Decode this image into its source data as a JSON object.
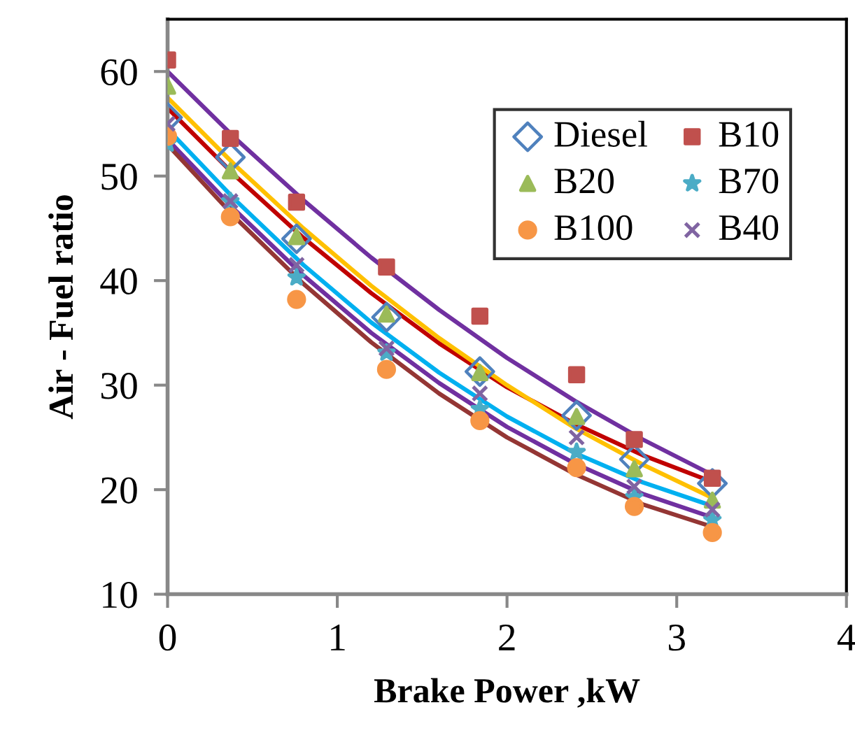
{
  "chart_data": {
    "type": "scatter",
    "xlabel": "Brake Power ,kW",
    "ylabel": "Air - Fuel ratio",
    "xlim": [
      0,
      4
    ],
    "xticks": [
      0,
      1,
      2,
      3,
      4
    ],
    "ylim": [
      10,
      65
    ],
    "yticks": [
      10,
      20,
      30,
      40,
      50,
      60
    ],
    "grid": false,
    "legend": "top right",
    "x": [
      0,
      0.37,
      0.76,
      1.29,
      1.84,
      2.41,
      2.75,
      3.21
    ],
    "series": [
      {
        "name": "Diesel",
        "color": "#4f81bd",
        "marker": "diamond",
        "values": [
          55.6,
          51.8,
          44.0,
          36.5,
          31.3,
          27.1,
          22.9,
          20.6
        ]
      },
      {
        "name": "B10",
        "color": "#c0504d",
        "marker": "square",
        "values": [
          61.1,
          53.6,
          47.5,
          41.3,
          36.6,
          31.0,
          24.8,
          21.1
        ]
      },
      {
        "name": "B20",
        "color": "#9bbb59",
        "marker": "triangle",
        "values": [
          58.6,
          50.5,
          44.2,
          36.8,
          31.2,
          27.0,
          22.0,
          19.0
        ]
      },
      {
        "name": "B70",
        "color": "#4bacc6",
        "marker": "star",
        "values": [
          53.1,
          47.6,
          40.3,
          33.1,
          27.7,
          23.6,
          19.3,
          17.1
        ]
      },
      {
        "name": "B100",
        "color": "#f79646",
        "marker": "circle",
        "values": [
          53.8,
          46.1,
          38.2,
          31.5,
          26.6,
          22.1,
          18.4,
          15.9
        ]
      },
      {
        "name": "B40",
        "color": "#8064a2",
        "marker": "cross",
        "values": [
          55.0,
          47.6,
          41.5,
          33.5,
          29.2,
          25.0,
          20.3,
          18.1
        ]
      },
      {
        "type": "line",
        "color": "#7030a0",
        "x": [
          0,
          0.4,
          0.8,
          1.2,
          1.6,
          2.0,
          2.4,
          2.8,
          3.2
        ],
        "values": [
          60,
          53.6,
          47.7,
          42.2,
          37.2,
          32.6,
          28.5,
          24.8,
          21.5
        ]
      },
      {
        "type": "line",
        "color": "#c00000",
        "x": [
          0,
          0.4,
          0.8,
          1.2,
          1.6,
          2.0,
          2.4,
          2.8,
          3.2
        ],
        "values": [
          56.5,
          50.0,
          44.1,
          38.8,
          34.0,
          29.8,
          26.3,
          23.3,
          20.8
        ]
      },
      {
        "type": "line",
        "color": "#ffc000",
        "x": [
          0,
          0.4,
          0.8,
          1.2,
          1.6,
          2.0,
          2.4,
          2.8,
          3.2
        ],
        "values": [
          57.5,
          51.0,
          45.0,
          39.5,
          34.5,
          30.0,
          25.9,
          22.4,
          19.3
        ]
      },
      {
        "type": "line",
        "color": "#00b0f0",
        "x": [
          0,
          0.4,
          0.8,
          1.2,
          1.6,
          2.0,
          2.4,
          2.8,
          3.2
        ],
        "values": [
          54.5,
          47.7,
          41.5,
          36.0,
          31.2,
          27.0,
          23.5,
          20.7,
          18.5
        ]
      },
      {
        "type": "line",
        "color": "#7030a0",
        "x": [
          0,
          0.4,
          0.8,
          1.2,
          1.6,
          2.0,
          2.4,
          2.8,
          3.2
        ],
        "values": [
          53.5,
          46.7,
          40.5,
          35.0,
          30.2,
          26.0,
          22.5,
          19.6,
          17.4
        ]
      },
      {
        "type": "line",
        "color": "#943634",
        "x": [
          0,
          0.4,
          0.8,
          1.2,
          1.6,
          2.0,
          2.4,
          2.8,
          3.2
        ],
        "values": [
          53,
          46.0,
          39.7,
          34.1,
          29.2,
          25.0,
          21.5,
          18.6,
          16.5
        ]
      }
    ]
  }
}
